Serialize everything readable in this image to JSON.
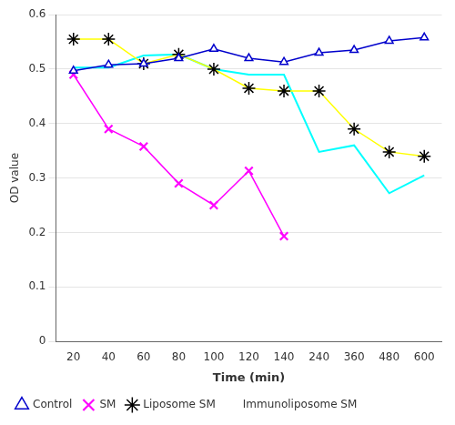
{
  "chart_data": {
    "type": "line",
    "xlabel": "Time (min)",
    "ylabel": "OD value",
    "categories": [
      "20",
      "40",
      "60",
      "80",
      "100",
      "120",
      "140",
      "240",
      "360",
      "480",
      "600"
    ],
    "series": [
      {
        "name": "Control",
        "color": "#0000CC",
        "marker": "triangle",
        "values": [
          0.497,
          0.508,
          0.51,
          0.52,
          0.537,
          0.52,
          0.513,
          0.53,
          0.535,
          0.552,
          0.558
        ]
      },
      {
        "name": "SM",
        "color": "#FF00FF",
        "marker": "x",
        "values": [
          0.49,
          0.39,
          0.358,
          0.29,
          0.25,
          0.313,
          0.193,
          null,
          null,
          null,
          null
        ]
      },
      {
        "name": "Liposome SM",
        "color": "#FFFF00",
        "marker": "star",
        "values": [
          0.555,
          0.555,
          0.51,
          0.527,
          0.5,
          0.465,
          0.46,
          0.46,
          0.39,
          0.348,
          0.34
        ]
      },
      {
        "name": "Immunoliposome SM",
        "color": "#00FFFF",
        "marker": "none",
        "values": [
          0.503,
          0.503,
          0.525,
          0.527,
          0.5,
          0.49,
          0.49,
          0.348,
          0.36,
          0.272,
          0.305
        ]
      }
    ],
    "ylim": [
      0,
      0.6
    ],
    "yticks": [
      0,
      0.1,
      0.2,
      0.3,
      0.4,
      0.5,
      0.6
    ],
    "grid": true,
    "legend": "lower left"
  }
}
